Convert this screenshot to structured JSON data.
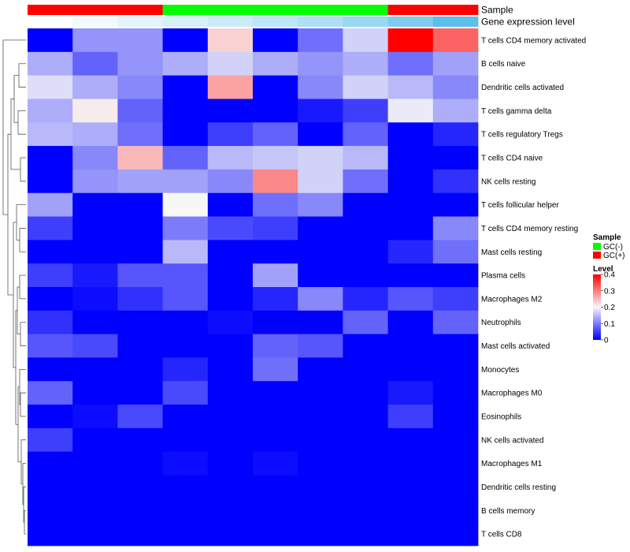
{
  "chart_data": {
    "type": "heatmap",
    "annotation_tracks": [
      {
        "name": "Sample",
        "values": [
          "GC(+)",
          "GC(+)",
          "GC(+)",
          "GC(-)",
          "GC(-)",
          "GC(-)",
          "GC(-)",
          "GC(-)",
          "GC(+)",
          "GC(+)"
        ]
      },
      {
        "name": "Gene expression level",
        "colors": [
          "#ffffff",
          "#f2fafd",
          "#e3f4fb",
          "#d7f0fa",
          "#cbebf8",
          "#bde6f6",
          "#ade0f4",
          "#98d8f1",
          "#7fcdee",
          "#5bbfeb"
        ]
      }
    ],
    "rows": [
      "T cells CD4 memory activated",
      "B cells naive",
      "Dendritic cells activated",
      "T cells gamma delta",
      "T cells regulatory  Tregs",
      "T cells CD4 naive",
      "NK cells resting",
      "T cells follicular helper",
      "T cells CD4 memory resting",
      "Mast cells resting",
      "Plasma cells",
      "Macrophages M2",
      "Neutrophils",
      "Mast cells activated",
      "Monocytes",
      "Macrophages M0",
      "Eosinophils",
      "NK cells activated",
      "Macrophages M1",
      "Dendritic cells resting",
      "B cells memory",
      "T cells CD8"
    ],
    "values": [
      [
        0.0,
        0.12,
        0.12,
        0.0,
        0.23,
        0.0,
        0.09,
        0.17,
        0.4,
        0.32
      ],
      [
        0.14,
        0.08,
        0.12,
        0.14,
        0.17,
        0.14,
        0.12,
        0.14,
        0.09,
        0.13
      ],
      [
        0.18,
        0.14,
        0.11,
        0.0,
        0.27,
        0.0,
        0.11,
        0.17,
        0.15,
        0.11
      ],
      [
        0.14,
        0.21,
        0.08,
        0.0,
        0.0,
        0.0,
        0.02,
        0.05,
        0.19,
        0.14
      ],
      [
        0.15,
        0.14,
        0.09,
        0.0,
        0.05,
        0.08,
        0.0,
        0.08,
        0.0,
        0.03
      ],
      [
        0.0,
        0.11,
        0.25,
        0.08,
        0.15,
        0.16,
        0.17,
        0.15,
        0.0,
        0.0
      ],
      [
        0.0,
        0.12,
        0.13,
        0.13,
        0.11,
        0.29,
        0.17,
        0.09,
        0.0,
        0.04
      ],
      [
        0.13,
        0.0,
        0.0,
        0.2,
        0.0,
        0.09,
        0.11,
        0.0,
        0.0,
        0.0
      ],
      [
        0.05,
        0.0,
        0.0,
        0.1,
        0.06,
        0.05,
        0.0,
        0.0,
        0.0,
        0.11
      ],
      [
        0.0,
        0.0,
        0.0,
        0.15,
        0.0,
        0.0,
        0.0,
        0.0,
        0.03,
        0.09
      ],
      [
        0.05,
        0.02,
        0.07,
        0.07,
        0.0,
        0.13,
        0.0,
        0.0,
        0.0,
        0.0
      ],
      [
        0.0,
        0.01,
        0.04,
        0.07,
        0.0,
        0.03,
        0.11,
        0.03,
        0.07,
        0.05
      ],
      [
        0.04,
        0.0,
        0.0,
        0.0,
        0.01,
        0.0,
        0.0,
        0.08,
        0.0,
        0.08
      ],
      [
        0.07,
        0.06,
        0.0,
        0.0,
        0.0,
        0.08,
        0.07,
        0.0,
        0.0,
        0.0
      ],
      [
        0.0,
        0.0,
        0.0,
        0.03,
        0.0,
        0.09,
        0.0,
        0.0,
        0.0,
        0.0
      ],
      [
        0.08,
        0.0,
        0.0,
        0.06,
        0.0,
        0.0,
        0.0,
        0.0,
        0.02,
        0.0
      ],
      [
        0.0,
        0.01,
        0.06,
        0.0,
        0.0,
        0.0,
        0.0,
        0.0,
        0.05,
        0.0
      ],
      [
        0.05,
        0.0,
        0.0,
        0.0,
        0.0,
        0.0,
        0.0,
        0.0,
        0.0,
        0.0
      ],
      [
        0.0,
        0.0,
        0.0,
        0.01,
        0.0,
        0.01,
        0.0,
        0.0,
        0.0,
        0.0
      ],
      [
        0.0,
        0.0,
        0.0,
        0.0,
        0.0,
        0.0,
        0.0,
        0.0,
        0.0,
        0.0
      ],
      [
        0.0,
        0.0,
        0.0,
        0.0,
        0.0,
        0.0,
        0.0,
        0.0,
        0.0,
        0.0
      ],
      [
        0.0,
        0.0,
        0.0,
        0.0,
        0.0,
        0.0,
        0.0,
        0.0,
        0.0,
        0.0
      ]
    ],
    "color_scale": {
      "min": 0,
      "mid": 0.2,
      "max": 0.4,
      "low_color": "#0000ff",
      "mid_color": "#f7f7f7",
      "high_color": "#ff0000"
    },
    "legend": {
      "placement": "right",
      "sample_title": "Sample",
      "sample_entries": [
        {
          "label": "GC(-)",
          "color": "#00ff00"
        },
        {
          "label": "GC(+)",
          "color": "#ff0000"
        }
      ],
      "level_title": "Level",
      "level_ticks": [
        "0.4",
        "0.3",
        "0.2",
        "0.1",
        "0"
      ]
    },
    "sample_colors": {
      "GC(-)": "#00ff00",
      "GC(+)": "#ff0000"
    },
    "row_dendrogram": true
  }
}
